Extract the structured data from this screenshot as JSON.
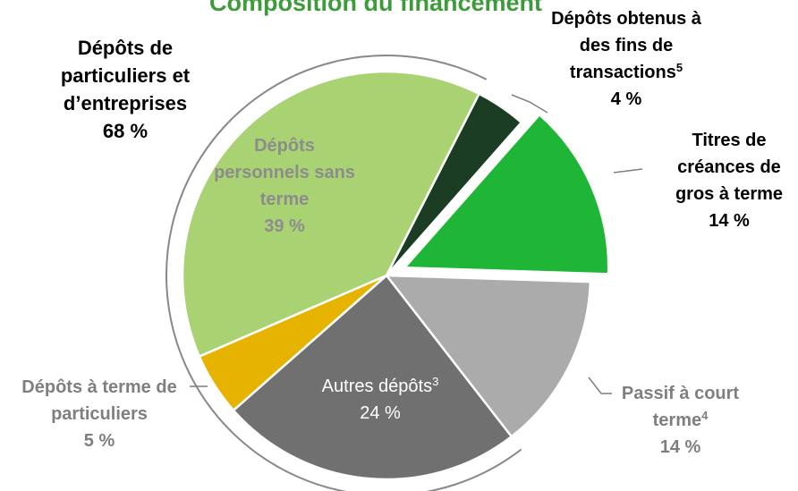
{
  "chart_data": {
    "type": "pie",
    "title": "Composition du financement",
    "categories": [
      "Dépôts obtenus à des fins de transactions",
      "Titres de créances de gros à terme",
      "Passif à court terme",
      "Autres dépôts",
      "Dépôts à terme de particuliers",
      "Dépôts personnels sans terme"
    ],
    "footnotes": [
      "5",
      null,
      "4",
      "3",
      null,
      null
    ],
    "values": [
      4,
      14,
      14,
      24,
      5,
      39
    ],
    "value_labels": [
      "4 %",
      "14 %",
      "14 %",
      "24 %",
      "5 %",
      "39 %"
    ],
    "colors": [
      "#1b3d24",
      "#1fb537",
      "#ababab",
      "#707070",
      "#e6b300",
      "#a9d373"
    ],
    "exploded": "Titres de créances de gros à terme",
    "group": {
      "name": "Dépôts de particuliers et d’entreprises",
      "value": 68,
      "value_label": "68 %"
    }
  }
}
